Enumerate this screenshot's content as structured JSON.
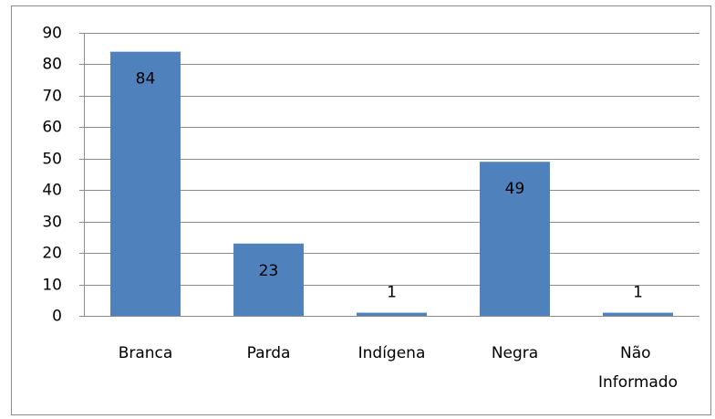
{
  "chart_data": {
    "type": "bar",
    "categories": [
      "Branca",
      "Parda",
      "Indígena",
      "Negra",
      "Não Informado"
    ],
    "values": [
      84,
      23,
      1,
      49,
      1
    ],
    "color": "#4f81bd",
    "ylim": [
      0,
      90
    ],
    "yticks": [
      0,
      10,
      20,
      30,
      40,
      50,
      60,
      70,
      80,
      90
    ],
    "grid": true
  }
}
